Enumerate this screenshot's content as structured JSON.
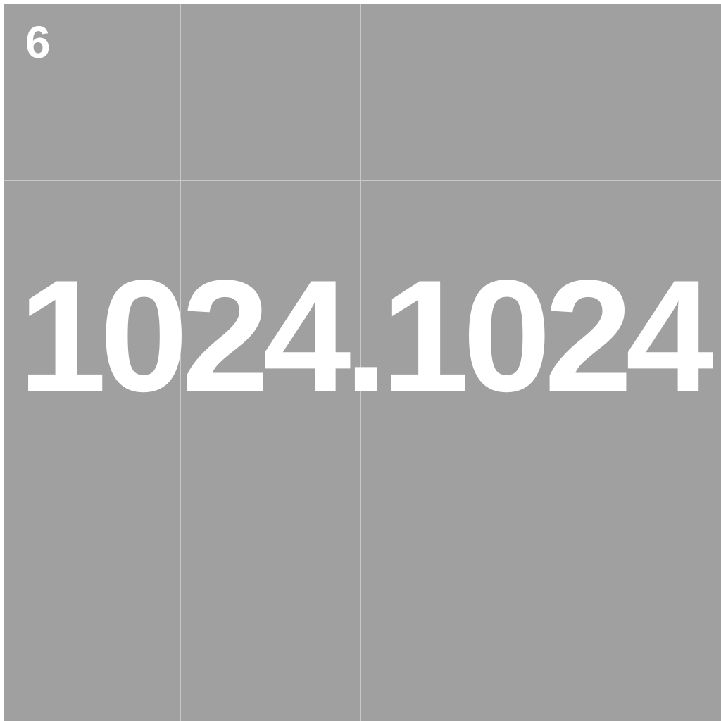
{
  "corner_label": "6",
  "center_label": "1024.1024",
  "colors": {
    "background": "#a0a0a0",
    "grid_line": "#c8c8c8",
    "text": "#ffffff"
  }
}
